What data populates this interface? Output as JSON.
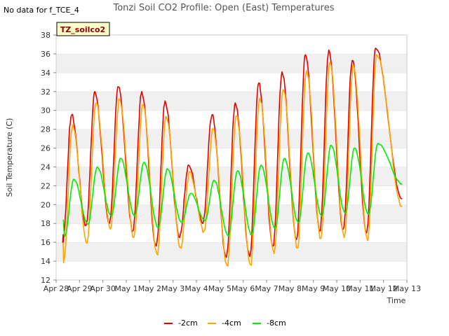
{
  "no_data_note": "No data for f_TCE_4",
  "station_label": "TZ_soilco2",
  "chart_data": {
    "type": "line",
    "title": "Tonzi Soil CO2 Profile: Open (East) Temperatures",
    "xlabel": "Time",
    "ylabel": "Soil Temperature (C)",
    "ylim": [
      12,
      38
    ],
    "xlim": [
      0,
      15
    ],
    "x_unit": "days from Apr 28",
    "x_tick_labels": [
      "Apr 28",
      "Apr 29",
      "Apr 30",
      "May 1",
      "May 2",
      "May 3",
      "May 4",
      "May 5",
      "May 6",
      "May 7",
      "May 8",
      "May 9",
      "May 10",
      "May 11",
      "May 12",
      "May 13"
    ],
    "y_ticks": [
      12,
      14,
      16,
      18,
      20,
      22,
      24,
      26,
      28,
      30,
      32,
      34,
      36,
      38
    ],
    "grid": "horizontal bands",
    "legend_position": "bottom",
    "series": [
      {
        "name": "-2cm",
        "color": "#e00000",
        "daily_min": [
          16.0,
          17.8,
          18.0,
          17.2,
          15.6,
          16.5,
          18.0,
          14.4,
          14.5,
          15.6,
          16.3,
          17.2,
          17.4,
          17.0
        ],
        "daily_max": [
          29.5,
          32.0,
          32.5,
          32.0,
          31.0,
          24.2,
          29.5,
          30.8,
          32.9,
          34.1,
          35.9,
          36.4,
          35.3,
          36.6
        ],
        "start": 16.8,
        "end": 20.6
      },
      {
        "name": "-4cm",
        "color": "#ffa500",
        "daily_min": [
          14.0,
          15.9,
          17.4,
          16.5,
          14.7,
          15.5,
          17.2,
          13.5,
          13.6,
          14.8,
          15.4,
          16.4,
          16.5,
          16.2
        ],
        "daily_max": [
          28.5,
          30.8,
          31.2,
          30.6,
          29.3,
          23.5,
          28.0,
          29.4,
          31.3,
          32.2,
          34.2,
          35.1,
          34.8,
          35.9
        ],
        "start": 16.0,
        "end": 19.8
      },
      {
        "name": "-8cm",
        "color": "#00ee00",
        "daily_min": [
          16.6,
          17.9,
          18.8,
          18.8,
          17.6,
          18.1,
          18.3,
          16.7,
          16.8,
          17.5,
          18.1,
          18.8,
          19.1,
          19.0
        ],
        "daily_max": [
          22.7,
          24.0,
          24.9,
          24.5,
          23.8,
          21.2,
          22.6,
          23.6,
          24.2,
          24.9,
          25.5,
          26.3,
          26.0,
          26.5
        ],
        "start": 18.4,
        "end": 22.2
      }
    ]
  }
}
